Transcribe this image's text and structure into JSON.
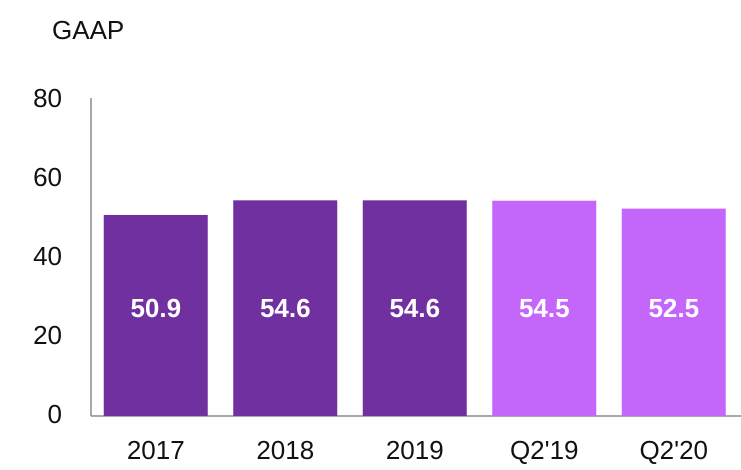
{
  "chart_data": {
    "type": "bar",
    "title": "GAAP",
    "categories": [
      "2017",
      "2018",
      "2019",
      "Q2'19",
      "Q2'20"
    ],
    "values": [
      50.9,
      54.6,
      54.6,
      54.5,
      52.5
    ],
    "colors": [
      "#7030a0",
      "#7030a0",
      "#7030a0",
      "#c566fb",
      "#c566fb"
    ],
    "ylim": [
      0,
      80
    ],
    "yticks": [
      0,
      20,
      40,
      60,
      80
    ],
    "grid": false
  }
}
